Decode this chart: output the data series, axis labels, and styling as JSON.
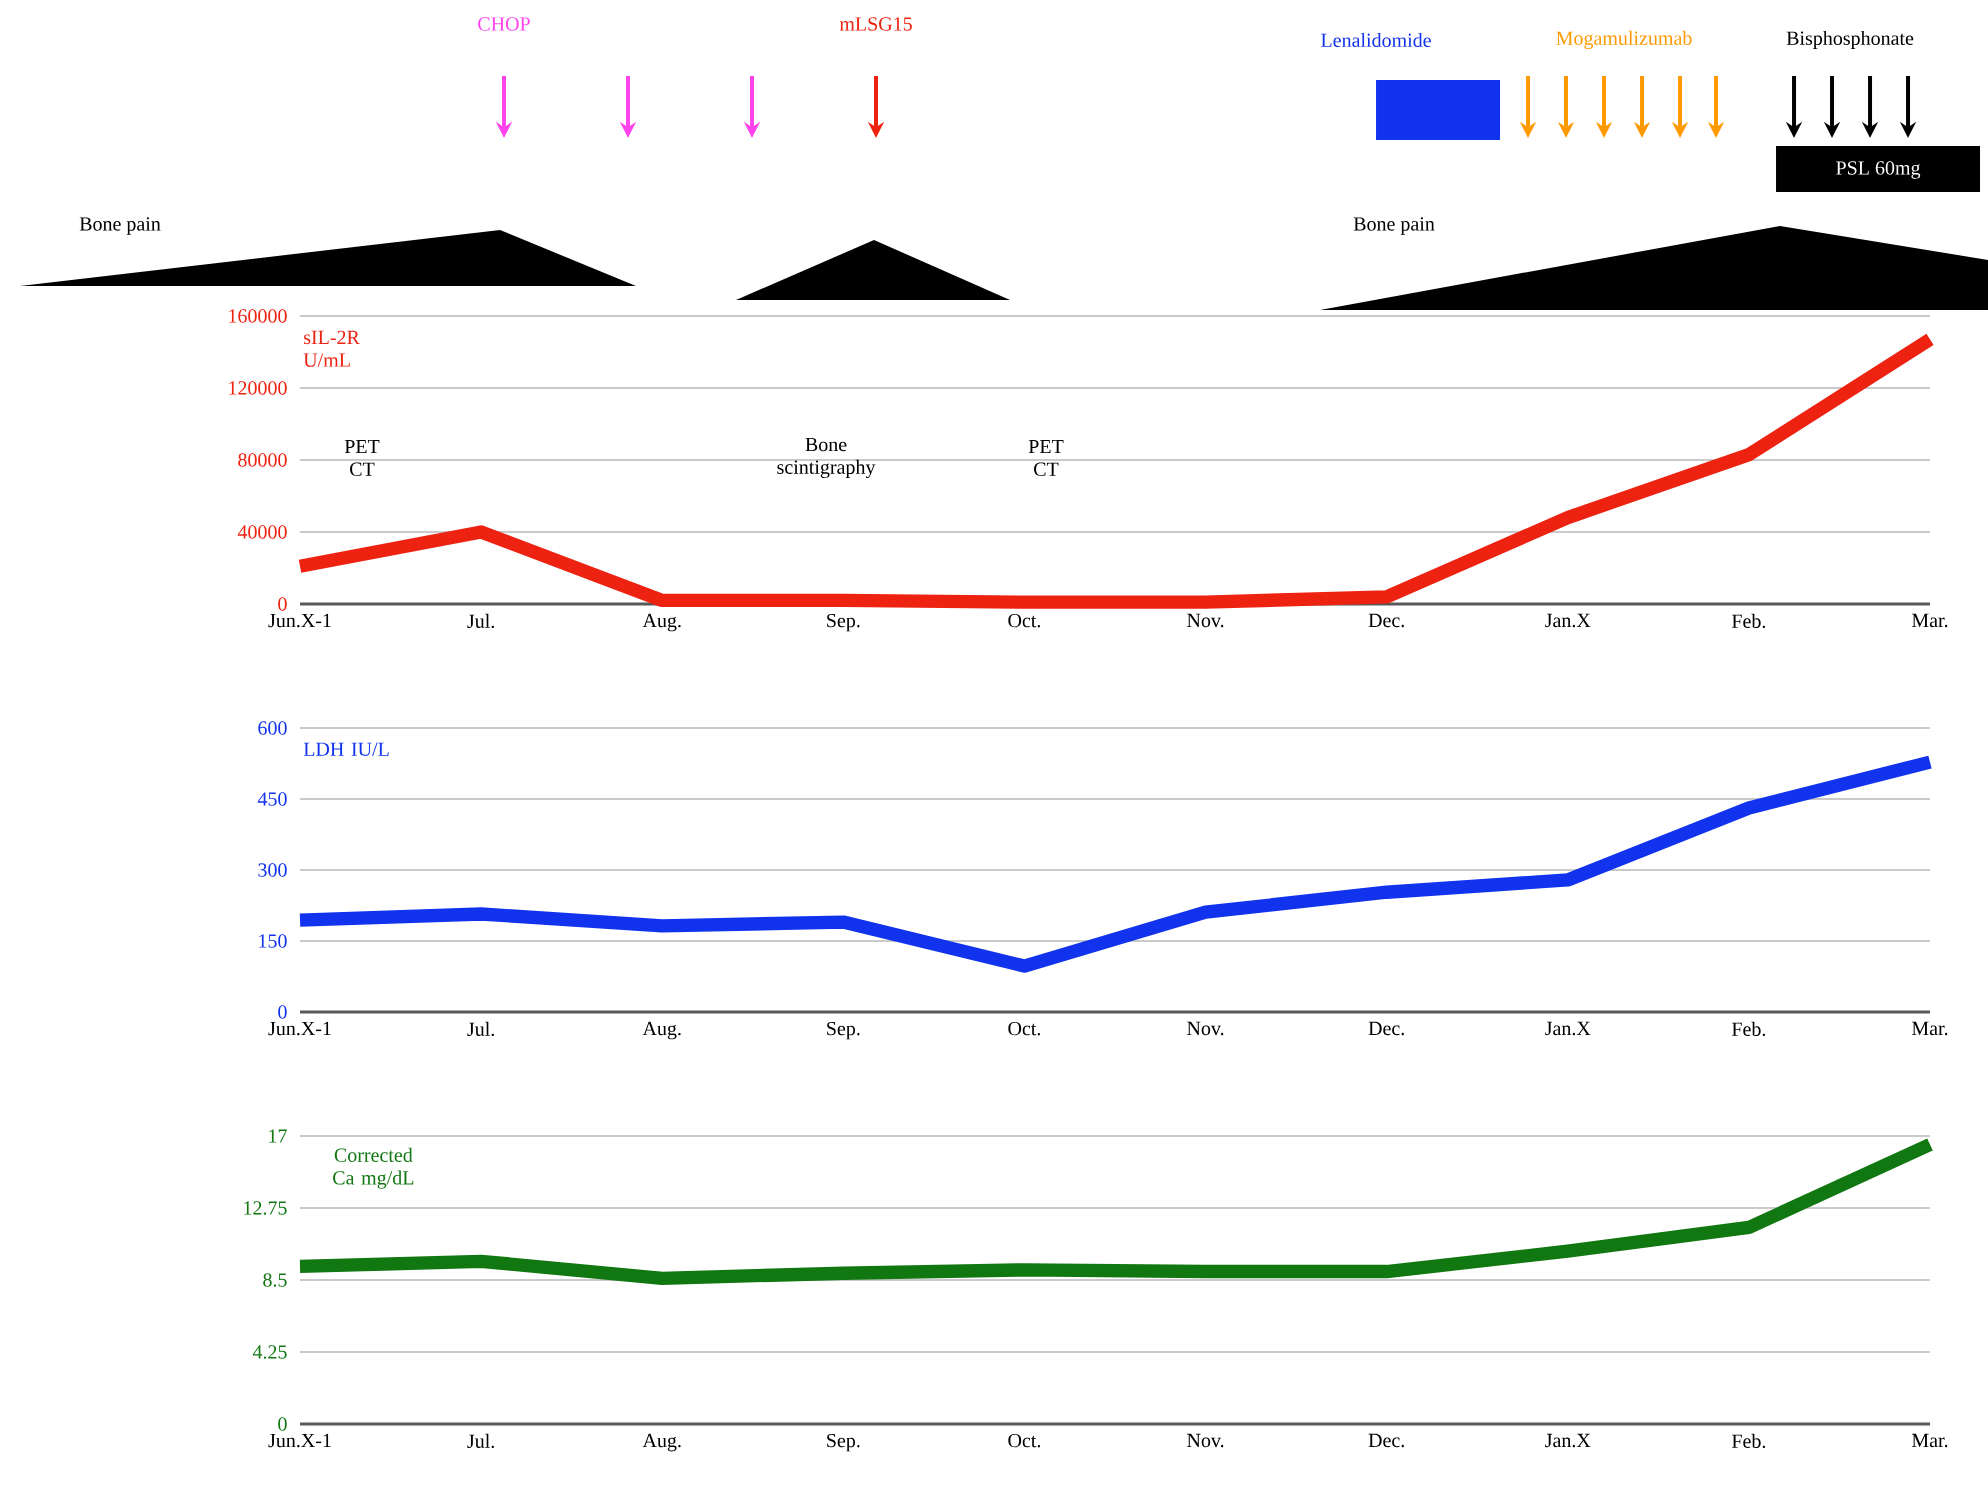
{
  "chart_data": [
    {
      "type": "line",
      "ylabel": "sIL-2R U/mL",
      "color": "#ee2211",
      "categories": [
        "Jun.X-1",
        "Jul.",
        "Aug.",
        "Sep.",
        "Oct.",
        "Nov.",
        "Dec.",
        "Jan.X",
        "Feb.",
        "Mar."
      ],
      "values": [
        21000,
        40000,
        2000,
        2000,
        1000,
        1000,
        4000,
        48000,
        83000,
        147000
      ],
      "ylim": [
        0,
        160000
      ],
      "yticks": [
        0,
        40000,
        80000,
        120000,
        160000
      ],
      "grid": "y",
      "annotations": [
        "CHOP",
        "mLSG15",
        "Lenalidomide",
        "Mogamulizumab",
        "Bisphosphonate",
        "PSL 60mg",
        "Bone pain",
        "Bone pain",
        "PET CT",
        "Bone scintigraphy",
        "PET CT"
      ]
    },
    {
      "type": "line",
      "ylabel": "LDH IU/L",
      "color": "#1133ee",
      "categories": [
        "Jun.X-1",
        "Jul.",
        "Aug.",
        "Sep.",
        "Oct.",
        "Nov.",
        "Dec.",
        "Jan.X",
        "Feb.",
        "Mar."
      ],
      "values": [
        194,
        207,
        182,
        190,
        97,
        211,
        253,
        279,
        431,
        528
      ],
      "ylim": [
        0,
        600
      ],
      "yticks": [
        0,
        150,
        300,
        450,
        600
      ],
      "grid": "y"
    },
    {
      "type": "line",
      "ylabel": "Corrected Ca mg/dL",
      "color": "#117711",
      "categories": [
        "Jun.X-1",
        "Jul.",
        "Aug.",
        "Sep.",
        "Oct.",
        "Nov.",
        "Dec.",
        "Jan.X",
        "Feb.",
        "Mar."
      ],
      "values": [
        9.3,
        9.6,
        8.6,
        8.9,
        9.1,
        9.0,
        9.0,
        10.2,
        11.6,
        16.5
      ],
      "ylim": [
        0,
        17
      ],
      "yticks": [
        0,
        4.25,
        8.5,
        12.75,
        17
      ],
      "grid": "y"
    }
  ]
}
